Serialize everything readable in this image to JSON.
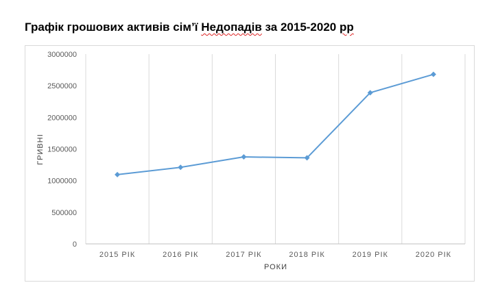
{
  "title": {
    "before": "Графік грошових активів сім’ї ",
    "flagged": "Недопадів",
    "after": " за 2015-2020 ",
    "flagged2": "рр"
  },
  "chart_data": {
    "type": "line",
    "title": "Графік грошових активів сім’ї Недопадів за 2015-2020 рр",
    "xlabel": "РОКИ",
    "ylabel": "ГРИВНІ",
    "categories": [
      "2015 РІК",
      "2016 РІК",
      "2017 РІК",
      "2018 РІК",
      "2019 РІК",
      "2020 РІК"
    ],
    "series": [
      {
        "values": [
          1095000,
          1210000,
          1375000,
          1360000,
          2390000,
          2680000
        ]
      }
    ],
    "ylim": [
      0,
      3000000
    ],
    "yticks": [
      "0",
      "500000",
      "1000000",
      "1500000",
      "2000000",
      "2500000",
      "3000000"
    ],
    "grid": "vertical",
    "legend": "none",
    "colors": {
      "line": "#5b9bd5",
      "grid": "#d9d9d9",
      "axis": "#bfbfbf"
    }
  }
}
